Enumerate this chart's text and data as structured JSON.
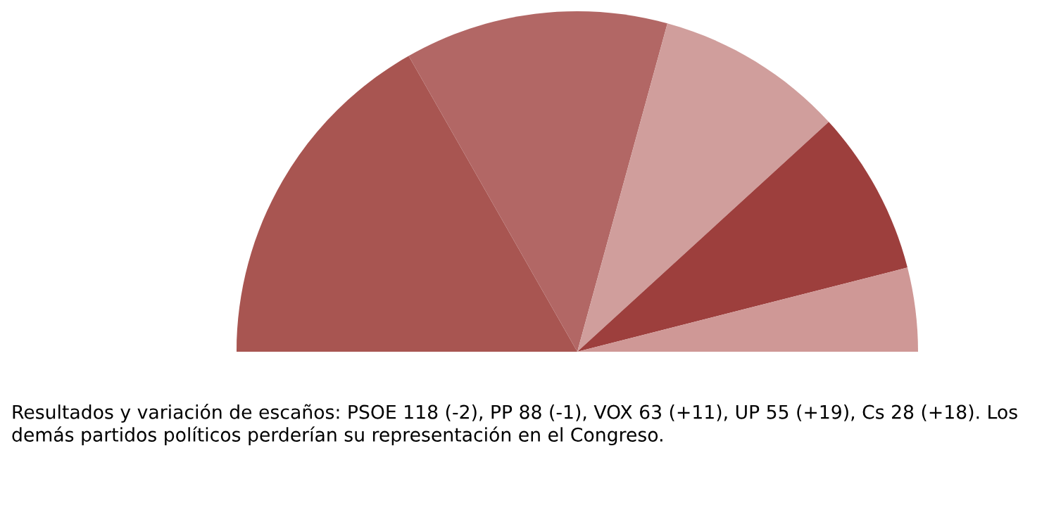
{
  "chart_data": {
    "type": "pie",
    "categories": [
      null,
      null,
      null,
      null,
      null
    ],
    "values": [
      33.52,
      25.0,
      17.9,
      15.63,
      7.95
    ],
    "colors": [
      "#a85551",
      "#b26765",
      "#d09e9c",
      "#9d3f3d",
      "#cf9896"
    ],
    "annotations": [
      "Resultados y variación de escaños: PSOE 118 (-2), PP 88 (-1), VOX 63 (+11), UP 55 (+19), Cs 28 (+18). Los demás partidos políticos perderían su representación en el Congreso."
    ]
  }
}
